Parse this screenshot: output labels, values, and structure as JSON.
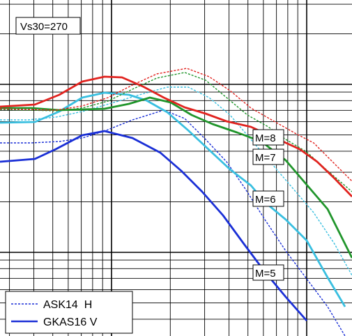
{
  "chart_data": {
    "type": "line",
    "title": "",
    "xlabel": "",
    "ylabel": "",
    "annotations": {
      "site_label": "Vs30=270",
      "magnitudes": [
        "M=8",
        "M=7",
        "M=6",
        "M=5"
      ]
    },
    "legend": {
      "placement": "bottom-left",
      "entries": [
        {
          "label": "ASK14  H",
          "style": "dashed",
          "color": "#1a2fd6"
        },
        {
          "label": "GKAS16 V",
          "style": "solid",
          "color": "#1a2fd6"
        }
      ]
    },
    "grid": true,
    "x_log": true,
    "y_log": true,
    "x_range_frac": [
      0,
      1
    ],
    "series": [
      {
        "name": "M=5",
        "model": "GKAS16 V",
        "style": "solid",
        "color": "#1a2fd6",
        "points": [
          [
            0,
            232
          ],
          [
            50,
            228
          ],
          [
            80,
            214
          ],
          [
            118,
            194
          ],
          [
            150,
            188
          ],
          [
            190,
            198
          ],
          [
            230,
            219
          ],
          [
            260,
            245
          ],
          [
            290,
            275
          ],
          [
            320,
            309
          ],
          [
            350,
            350
          ],
          [
            380,
            390
          ],
          [
            410,
            426
          ],
          [
            440,
            460
          ]
        ]
      },
      {
        "name": "M=5",
        "model": "ASK14 H",
        "style": "dashed",
        "color": "#1a2fd6",
        "points": [
          [
            0,
            205
          ],
          [
            45,
            205
          ],
          [
            85,
            203
          ],
          [
            118,
            198
          ],
          [
            150,
            188
          ],
          [
            190,
            172
          ],
          [
            235,
            158
          ],
          [
            265,
            170
          ],
          [
            295,
            200
          ],
          [
            325,
            232
          ],
          [
            350,
            268
          ],
          [
            380,
            315
          ],
          [
            410,
            360
          ],
          [
            440,
            400
          ],
          [
            470,
            440
          ],
          [
            495,
            482
          ]
        ]
      },
      {
        "name": "M=6",
        "model": "GKAS16 V",
        "style": "solid",
        "color": "#39bfe0",
        "points": [
          [
            0,
            176
          ],
          [
            50,
            175
          ],
          [
            85,
            160
          ],
          [
            118,
            140
          ],
          [
            150,
            133
          ],
          [
            185,
            136
          ],
          [
            210,
            144
          ],
          [
            240,
            161
          ],
          [
            270,
            187
          ],
          [
            300,
            215
          ],
          [
            330,
            243
          ],
          [
            360,
            266
          ],
          [
            380,
            290
          ],
          [
            410,
            315
          ],
          [
            440,
            345
          ],
          [
            470,
            398
          ],
          [
            495,
            440
          ]
        ]
      },
      {
        "name": "M=6",
        "model": "ASK14 H",
        "style": "dashed",
        "color": "#39bfe0",
        "points": [
          [
            0,
            172
          ],
          [
            40,
            172
          ],
          [
            80,
            168
          ],
          [
            118,
            160
          ],
          [
            160,
            148
          ],
          [
            200,
            136
          ],
          [
            240,
            125
          ],
          [
            270,
            125
          ],
          [
            300,
            140
          ],
          [
            330,
            165
          ],
          [
            360,
            200
          ],
          [
            390,
            235
          ],
          [
            420,
            270
          ],
          [
            450,
            305
          ],
          [
            480,
            350
          ],
          [
            505,
            395
          ]
        ]
      },
      {
        "name": "M=7",
        "model": "GKAS16 V",
        "style": "solid",
        "color": "#20952b",
        "points": [
          [
            0,
            155
          ],
          [
            45,
            155
          ],
          [
            85,
            158
          ],
          [
            118,
            157
          ],
          [
            150,
            156
          ],
          [
            185,
            149
          ],
          [
            215,
            140
          ],
          [
            245,
            147
          ],
          [
            275,
            165
          ],
          [
            305,
            178
          ],
          [
            340,
            190
          ],
          [
            375,
            203
          ],
          [
            410,
            230
          ],
          [
            440,
            265
          ],
          [
            470,
            300
          ],
          [
            505,
            370
          ]
        ]
      },
      {
        "name": "M=7",
        "model": "ASK14 H",
        "style": "dashed",
        "color": "#20952b",
        "points": [
          [
            0,
            157
          ],
          [
            40,
            158
          ],
          [
            80,
            159
          ],
          [
            118,
            155
          ],
          [
            155,
            145
          ],
          [
            190,
            128
          ],
          [
            225,
            112
          ],
          [
            265,
            104
          ],
          [
            295,
            115
          ],
          [
            325,
            140
          ],
          [
            355,
            165
          ],
          [
            385,
            182
          ],
          [
            410,
            200
          ],
          [
            440,
            218
          ],
          [
            470,
            245
          ],
          [
            505,
            275
          ]
        ]
      },
      {
        "name": "M=8",
        "model": "GKAS16 V",
        "style": "solid",
        "color": "#e1231f",
        "points": [
          [
            0,
            153
          ],
          [
            50,
            150
          ],
          [
            85,
            136
          ],
          [
            118,
            117
          ],
          [
            150,
            110
          ],
          [
            175,
            111
          ],
          [
            205,
            124
          ],
          [
            235,
            140
          ],
          [
            265,
            154
          ],
          [
            295,
            163
          ],
          [
            325,
            174
          ],
          [
            360,
            182
          ],
          [
            395,
            198
          ],
          [
            430,
            214
          ],
          [
            455,
            232
          ],
          [
            480,
            256
          ],
          [
            505,
            282
          ]
        ]
      },
      {
        "name": "M=8",
        "model": "ASK14 H",
        "style": "dashed",
        "color": "#e1231f",
        "points": [
          [
            0,
            156
          ],
          [
            40,
            157
          ],
          [
            80,
            158
          ],
          [
            118,
            152
          ],
          [
            155,
            140
          ],
          [
            190,
            122
          ],
          [
            225,
            106
          ],
          [
            268,
            98
          ],
          [
            300,
            110
          ],
          [
            330,
            130
          ],
          [
            360,
            155
          ],
          [
            395,
            175
          ],
          [
            425,
            192
          ],
          [
            450,
            205
          ],
          [
            475,
            230
          ],
          [
            505,
            260
          ]
        ]
      }
    ]
  }
}
